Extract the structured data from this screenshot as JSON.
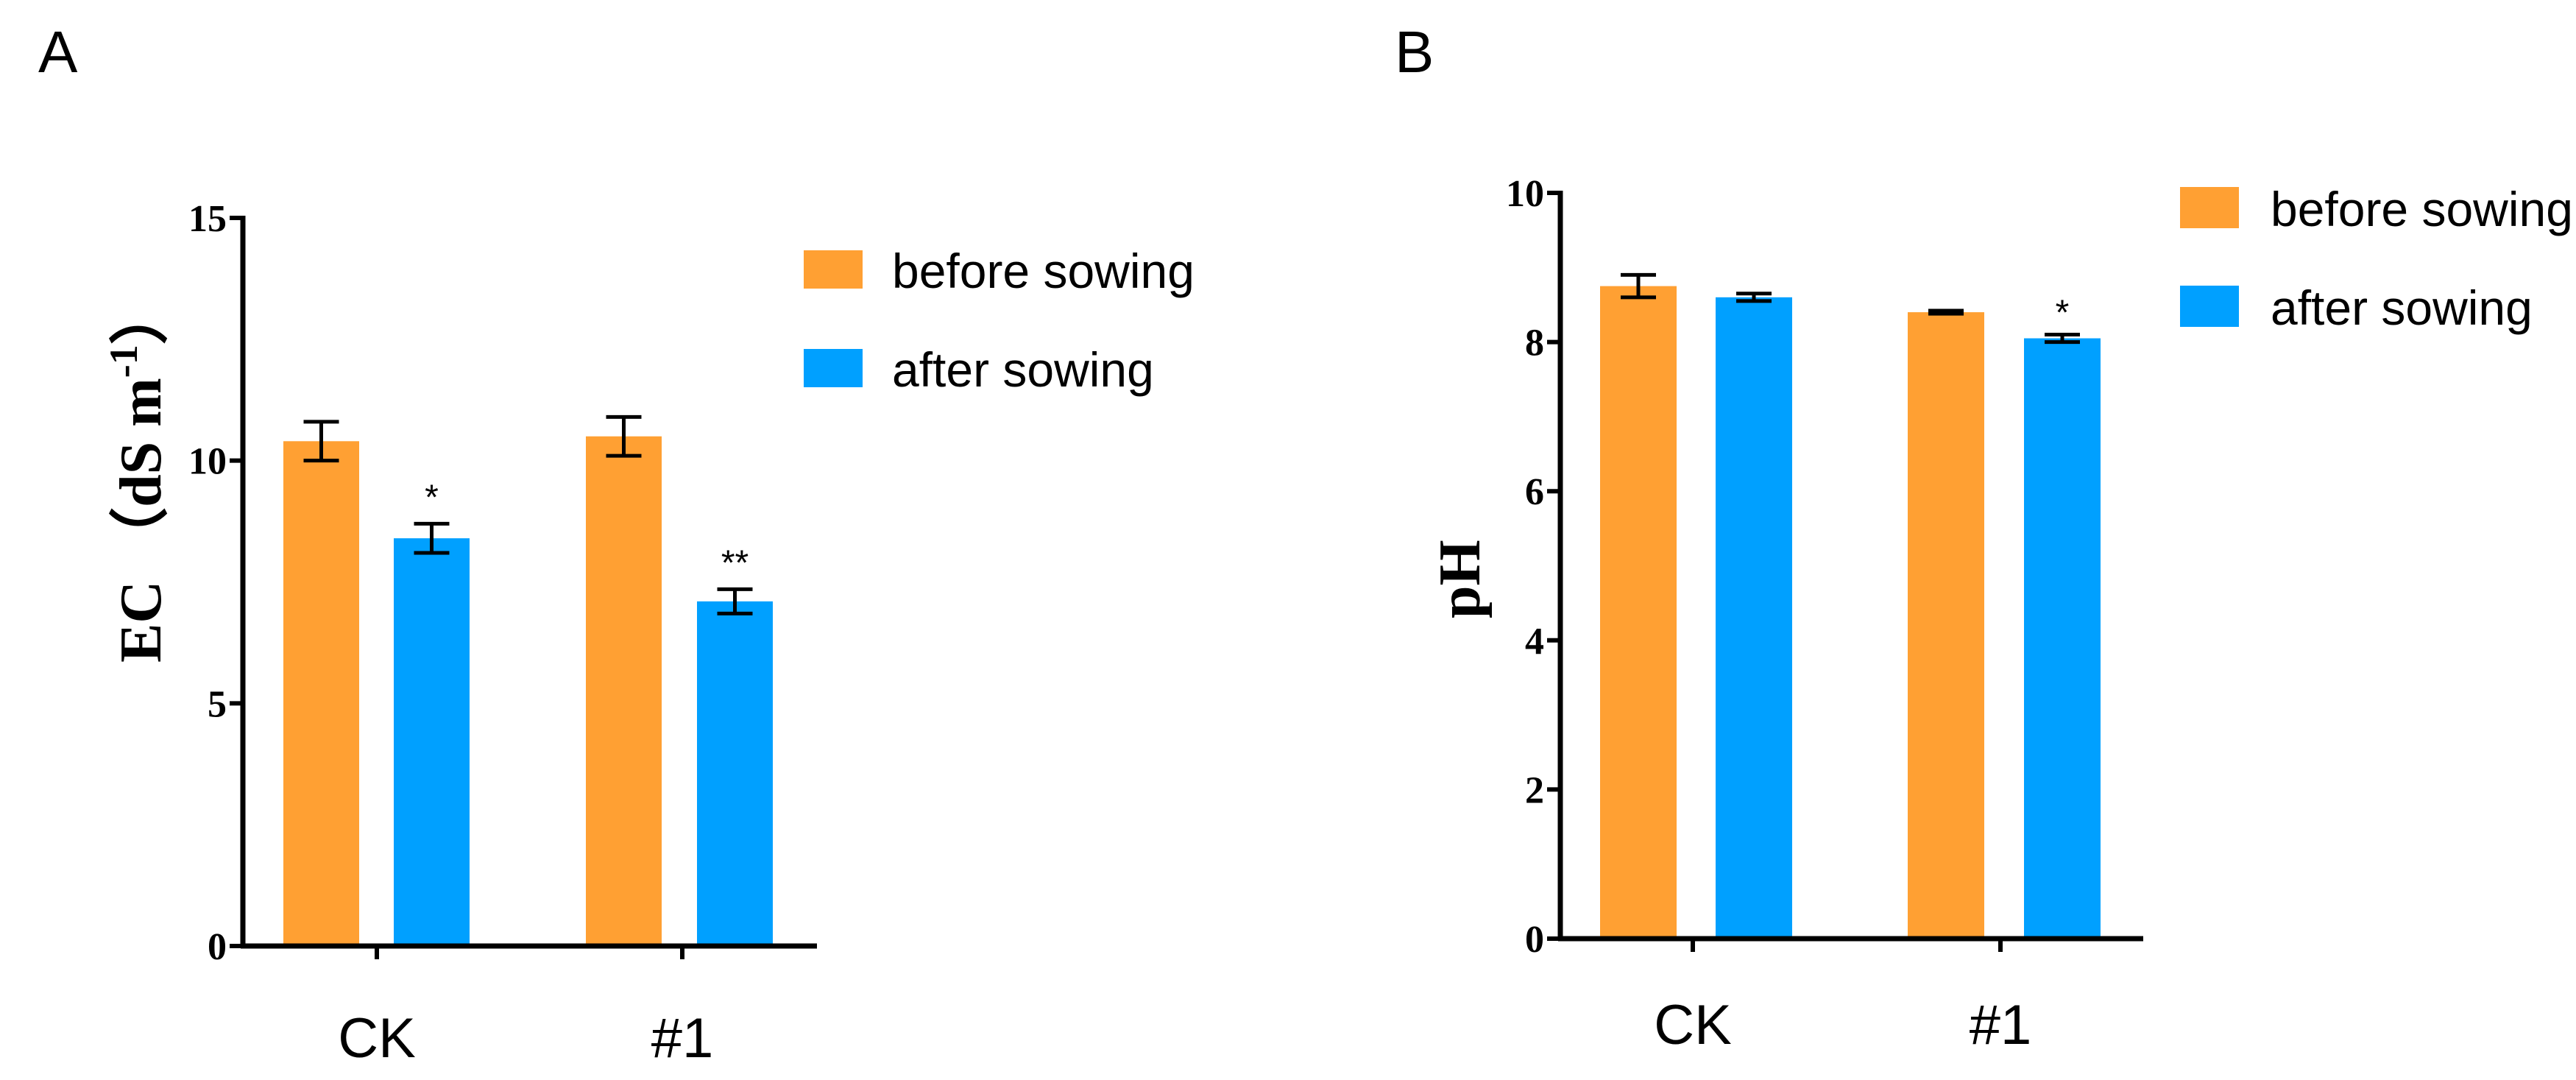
{
  "colors": {
    "before": "#FFA033",
    "after": "#00A0FF",
    "axis": "#000000"
  },
  "chart_data": [
    {
      "panel": "A",
      "type": "bar",
      "categories": [
        "CK",
        "#1"
      ],
      "series": [
        {
          "name": "before sowing",
          "values": [
            10.4,
            10.5
          ],
          "errors": [
            0.4,
            0.4
          ],
          "sig": [
            "",
            ""
          ]
        },
        {
          "name": "after sowing",
          "values": [
            8.4,
            7.1
          ],
          "errors": [
            0.3,
            0.25
          ],
          "sig": [
            "*",
            "**"
          ]
        }
      ],
      "ylabel": "EC （dS m",
      "ylabel_sup": "-1",
      "ylabel_close": "）",
      "ylim": [
        0,
        15
      ],
      "yticks": [
        0,
        5,
        10,
        15
      ],
      "legend": "top-right"
    },
    {
      "panel": "B",
      "type": "bar",
      "categories": [
        "CK",
        "#1"
      ],
      "series": [
        {
          "name": "before sowing",
          "values": [
            8.75,
            8.4
          ],
          "errors": [
            0.15,
            0.02
          ],
          "sig": [
            "",
            ""
          ]
        },
        {
          "name": "after sowing",
          "values": [
            8.6,
            8.05
          ],
          "errors": [
            0.05,
            0.05
          ],
          "sig": [
            "",
            "*"
          ]
        }
      ],
      "ylabel": "pH",
      "ylim": [
        0,
        10
      ],
      "yticks": [
        0,
        2,
        4,
        6,
        8,
        10
      ],
      "legend": "top-right"
    }
  ]
}
